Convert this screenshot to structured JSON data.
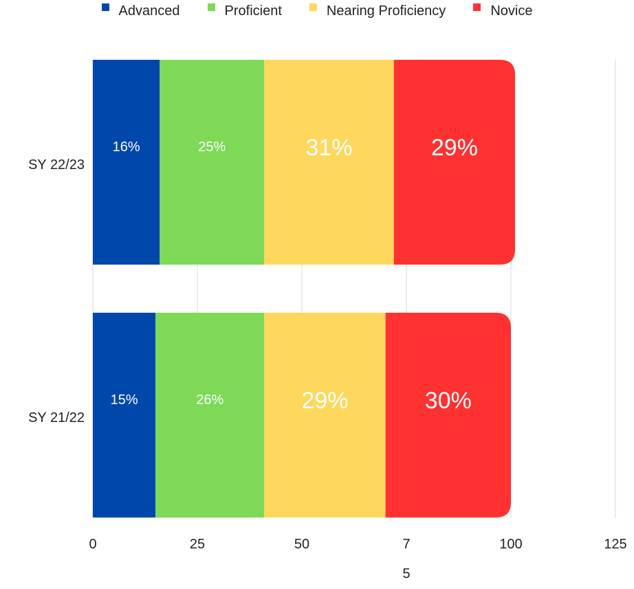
{
  "chart_data": {
    "type": "stacked-bar-horizontal",
    "categories": [
      "SY 22/23",
      "SY 21/22"
    ],
    "series": [
      {
        "name": "Advanced",
        "color": "#0047ab",
        "values": [
          16,
          15
        ],
        "value_labels": [
          "16%",
          "15%"
        ]
      },
      {
        "name": "Proficient",
        "color": "#7ed957",
        "values": [
          25,
          26
        ],
        "value_labels": [
          "25%",
          "26%"
        ]
      },
      {
        "name": "Nearing Proficiency",
        "color": "#fdd85d",
        "values": [
          31,
          29
        ],
        "value_labels": [
          "31%",
          "29%"
        ]
      },
      {
        "name": "Novice",
        "color": "#ff3131",
        "values": [
          29,
          30
        ],
        "value_labels": [
          "29%",
          "30%"
        ]
      }
    ],
    "xlim": [
      0,
      125
    ],
    "xticks": [
      0,
      25,
      50,
      {
        "value": 75,
        "label": "7\n5"
      },
      100,
      125
    ],
    "grid": true,
    "legend": "top"
  }
}
